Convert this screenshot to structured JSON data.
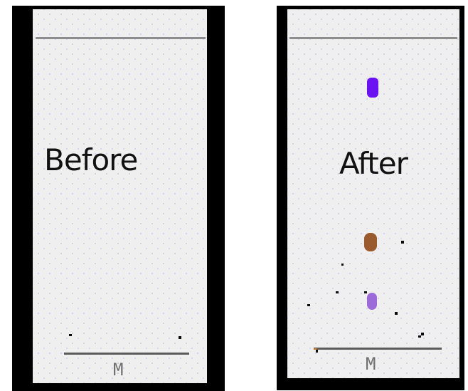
{
  "panels": {
    "before": {
      "label": "Before",
      "marker": "M"
    },
    "after": {
      "label": "After",
      "marker": "M"
    }
  },
  "colors": {
    "paper": "#efeff0",
    "speck": "#afafe6",
    "violet_blob": "#6b12f2",
    "brown_blob": "#9a5a2e",
    "lavender_blob": "#9c6ad9",
    "frame": "#000000"
  }
}
